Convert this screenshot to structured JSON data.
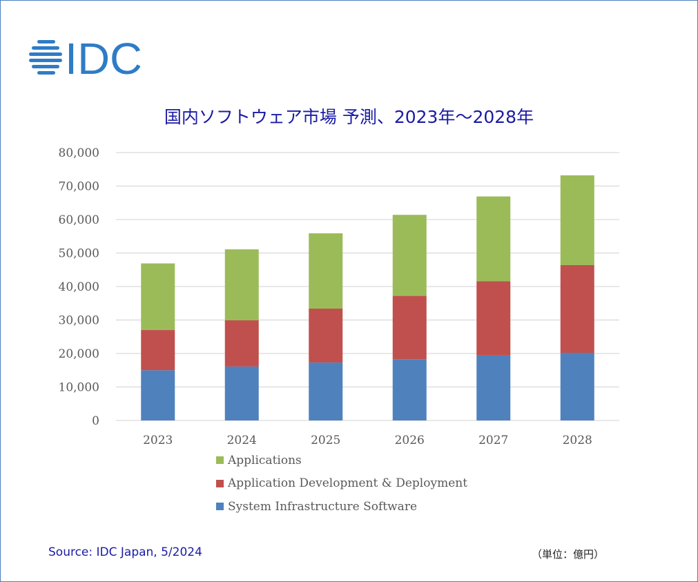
{
  "logo": {
    "text": "IDC",
    "color": "#2e7cc6"
  },
  "footer": {
    "source": "Source: IDC Japan, 5/2024",
    "unit": "（単位：億円）"
  },
  "chart_data": {
    "type": "bar",
    "stacked": true,
    "title": "国内ソフトウェア市場 予測、2023年～2028年",
    "xlabel": "",
    "ylabel": "",
    "categories": [
      "2023",
      "2024",
      "2025",
      "2026",
      "2027",
      "2028"
    ],
    "ylim": [
      0,
      80000
    ],
    "yticks": [
      0,
      10000,
      20000,
      30000,
      40000,
      50000,
      60000,
      70000,
      80000
    ],
    "ytick_labels": [
      "0",
      "10,000",
      "20,000",
      "30,000",
      "40,000",
      "50,000",
      "60,000",
      "70,000",
      "80,000"
    ],
    "grid": true,
    "legend_position": "bottom",
    "series": [
      {
        "name": "System Infrastructure Software",
        "color": "#4f81bd",
        "values": [
          15000,
          16100,
          17300,
          18300,
          19400,
          20200
        ]
      },
      {
        "name": "Application Development & Deployment",
        "color": "#c0504d",
        "values": [
          12000,
          13800,
          16100,
          18900,
          22200,
          26200
        ]
      },
      {
        "name": "Applications",
        "color": "#9bbb59",
        "values": [
          19900,
          21200,
          22500,
          24200,
          25300,
          26800
        ]
      }
    ],
    "legend_order": [
      2,
      1,
      0
    ]
  }
}
